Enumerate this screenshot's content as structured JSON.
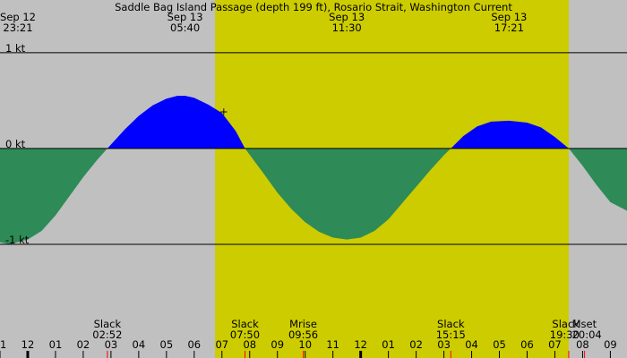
{
  "chart_data": {
    "type": "area",
    "title": "Saddle Bag Island Passage (depth 199 ft), Rosario Strait, Washington Current",
    "x_range_hours": [
      -1.0,
      21.6
    ],
    "y_range": [
      -2.0,
      1.55
    ],
    "grid": false,
    "colors": {
      "background": "#c0c0c0",
      "daylight": "#cccc00",
      "flood": "#0000ff",
      "ebb": "#2e8b57",
      "line": "#000000",
      "tick_major": "#000000",
      "tick_event": "#ff0000"
    },
    "daylight_hours": [
      6.75,
      19.5
    ],
    "y_ticks": [
      {
        "value": 1,
        "label": "1 kt"
      },
      {
        "value": 0,
        "label": "0 kt"
      },
      {
        "value": -1,
        "label": "-1 kt"
      }
    ],
    "x_hour_ticks": [
      {
        "h": -1,
        "label": "11"
      },
      {
        "h": 0,
        "label": "12"
      },
      {
        "h": 1,
        "label": "01"
      },
      {
        "h": 2,
        "label": "02"
      },
      {
        "h": 3,
        "label": "03"
      },
      {
        "h": 4,
        "label": "04"
      },
      {
        "h": 5,
        "label": "05"
      },
      {
        "h": 6,
        "label": "06"
      },
      {
        "h": 7,
        "label": "07"
      },
      {
        "h": 8,
        "label": "08"
      },
      {
        "h": 9,
        "label": "09"
      },
      {
        "h": 10,
        "label": "10"
      },
      {
        "h": 11,
        "label": "11"
      },
      {
        "h": 12,
        "label": "12"
      },
      {
        "h": 13,
        "label": "01"
      },
      {
        "h": 14,
        "label": "02"
      },
      {
        "h": 15,
        "label": "03"
      },
      {
        "h": 16,
        "label": "04"
      },
      {
        "h": 17,
        "label": "05"
      },
      {
        "h": 18,
        "label": "06"
      },
      {
        "h": 19,
        "label": "07"
      },
      {
        "h": 20,
        "label": "08"
      },
      {
        "h": 21,
        "label": "09"
      }
    ],
    "extreme_labels": [
      {
        "h": -0.65,
        "date": "Sep 12",
        "time": "23:21"
      },
      {
        "h": 5.67,
        "date": "Sep 13",
        "time": "05:40"
      },
      {
        "h": 11.5,
        "date": "Sep 13",
        "time": "11:30"
      },
      {
        "h": 17.35,
        "date": "Sep 13",
        "time": "17:21"
      }
    ],
    "event_labels": [
      {
        "h": 2.87,
        "name": "Slack",
        "time": "02:52"
      },
      {
        "h": 7.83,
        "name": "Slack",
        "time": "07:50"
      },
      {
        "h": 9.93,
        "name": "Mrise",
        "time": "09:56"
      },
      {
        "h": 15.25,
        "name": "Slack",
        "time": "15:15"
      },
      {
        "h": 19.5,
        "name": "Slack",
        "time": "19:30"
      },
      {
        "h": 20.07,
        "name": "Mset",
        "time": "20:04"
      }
    ],
    "current_marker": {
      "h": 7.0,
      "symbol": "+"
    },
    "series": [
      {
        "points": [
          [
            -1.0,
            -0.98
          ],
          [
            -0.65,
            -1.0
          ],
          [
            0.0,
            -0.95
          ],
          [
            0.5,
            -0.86
          ],
          [
            1.0,
            -0.7
          ],
          [
            1.5,
            -0.5
          ],
          [
            2.0,
            -0.3
          ],
          [
            2.5,
            -0.12
          ],
          [
            2.87,
            0.0
          ],
          [
            3.5,
            0.2
          ],
          [
            4.0,
            0.34
          ],
          [
            4.5,
            0.45
          ],
          [
            5.0,
            0.52
          ],
          [
            5.4,
            0.55
          ],
          [
            5.67,
            0.55
          ],
          [
            6.0,
            0.53
          ],
          [
            6.5,
            0.46
          ],
          [
            7.0,
            0.37
          ],
          [
            7.5,
            0.18
          ],
          [
            7.83,
            0.0
          ],
          [
            8.5,
            -0.26
          ],
          [
            9.0,
            -0.46
          ],
          [
            9.5,
            -0.63
          ],
          [
            10.0,
            -0.77
          ],
          [
            10.5,
            -0.87
          ],
          [
            11.0,
            -0.93
          ],
          [
            11.5,
            -0.95
          ],
          [
            12.0,
            -0.93
          ],
          [
            12.5,
            -0.86
          ],
          [
            13.0,
            -0.74
          ],
          [
            13.5,
            -0.57
          ],
          [
            14.0,
            -0.4
          ],
          [
            14.5,
            -0.23
          ],
          [
            15.0,
            -0.07
          ],
          [
            15.25,
            0.0
          ],
          [
            15.7,
            0.13
          ],
          [
            16.2,
            0.23
          ],
          [
            16.7,
            0.28
          ],
          [
            17.35,
            0.29
          ],
          [
            18.0,
            0.27
          ],
          [
            18.5,
            0.22
          ],
          [
            19.0,
            0.12
          ],
          [
            19.5,
            0.0
          ],
          [
            20.0,
            -0.18
          ],
          [
            20.5,
            -0.38
          ],
          [
            21.0,
            -0.56
          ],
          [
            21.6,
            -0.65
          ]
        ]
      }
    ]
  }
}
